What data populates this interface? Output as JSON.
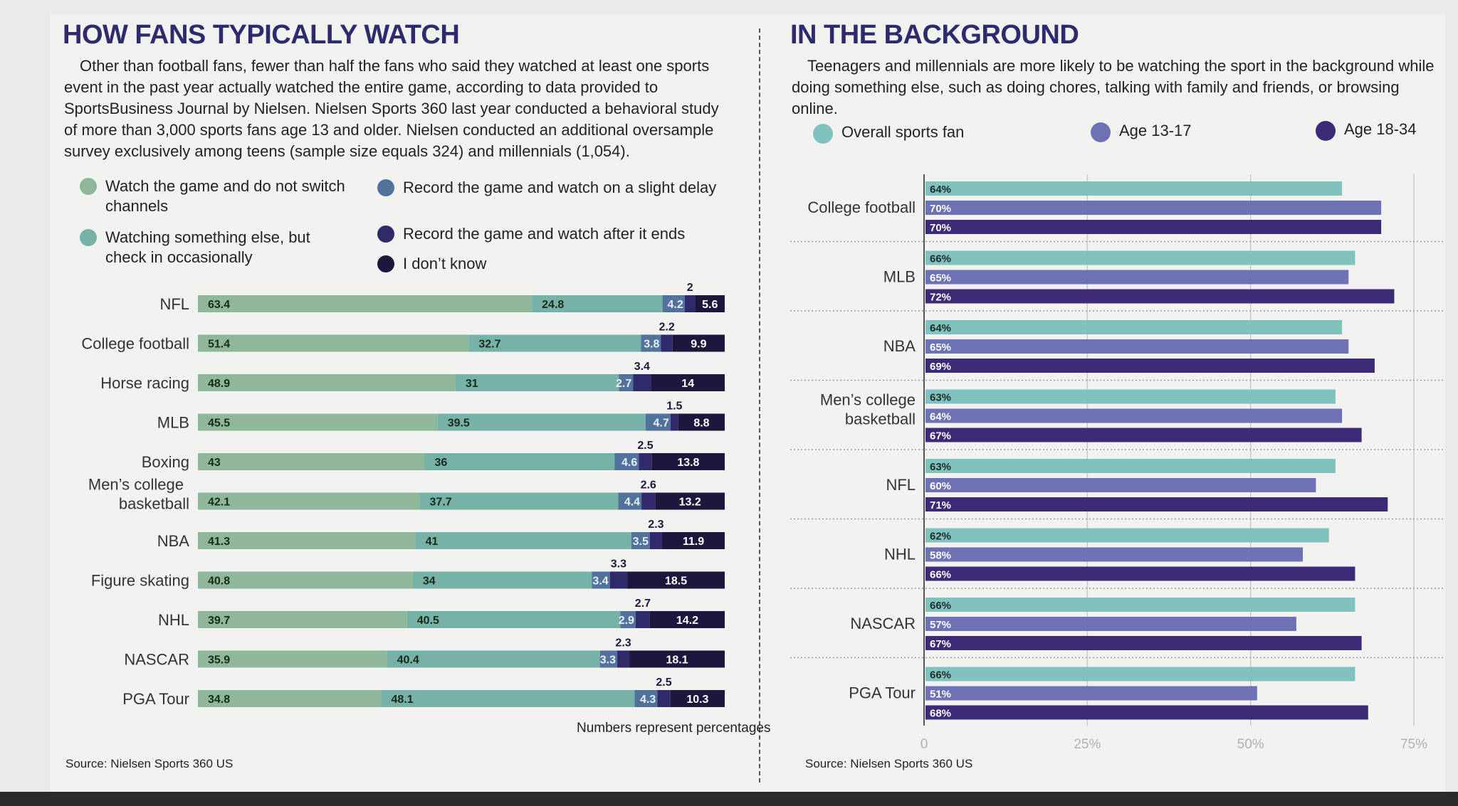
{
  "colors": {
    "watch_no_switch": "#8fb89a",
    "watching_else": "#76b2a8",
    "record_delay": "#51729a",
    "record_after": "#2f2a6a",
    "dont_know": "#1d173d",
    "overall": "#80c2be",
    "age_13_17": "#6c72b3",
    "age_18_34": "#3d2a76",
    "title": "#2e2a6e"
  },
  "left": {
    "title": "HOW FANS TYPICALLY WATCH",
    "intro": "Other than football fans, fewer than half the fans who said they watched at least one sports event in the past year actually watched the entire game, according to data provided to SportsBusiness Journal by Nielsen. Nielsen Sports 360 last year conducted a behavioral study of more than 3,000 sports fans age 13 and older. Nielsen conducted an additional oversample survey exclusively among teens (sample size equals 324) and millennials (1,054).",
    "legend": [
      {
        "label": "Watch the game and do not switch channels",
        "color_key": "watch_no_switch"
      },
      {
        "label": "Watching something else, but check in occasionally",
        "color_key": "watching_else"
      },
      {
        "label": "Record the game and watch on a slight delay",
        "color_key": "record_delay"
      },
      {
        "label": "Record the game and watch after it ends",
        "color_key": "record_after"
      },
      {
        "label": "I don’t know",
        "color_key": "dont_know"
      }
    ],
    "note": "Numbers represent percentages",
    "source": "Source: Nielsen Sports 360 US"
  },
  "right": {
    "title": "IN THE BACKGROUND",
    "intro": "Teenagers and millennials are more likely to be watching the sport in the background while doing something else, such as doing chores, talking with family and friends, or browsing online.",
    "legend": [
      {
        "label": "Overall sports fan",
        "color_key": "overall"
      },
      {
        "label": "Age 13-17",
        "color_key": "age_13_17"
      },
      {
        "label": "Age 18-34",
        "color_key": "age_18_34"
      }
    ],
    "source": "Source: Nielsen Sports 360 US"
  },
  "chart_data": [
    {
      "type": "bar",
      "orientation": "horizontal",
      "stacked": true,
      "title": "HOW FANS TYPICALLY WATCH",
      "unit": "percent",
      "categories": [
        "NFL",
        "College football",
        "Horse racing",
        "MLB",
        "Boxing",
        "Men’s college basketball",
        "NBA",
        "Figure skating",
        "NHL",
        "NASCAR",
        "PGA Tour"
      ],
      "series": [
        {
          "name": "Watch the game and do not switch channels",
          "values": [
            63.4,
            51.4,
            48.9,
            45.5,
            43,
            42.1,
            41.3,
            40.8,
            39.7,
            35.9,
            34.8
          ]
        },
        {
          "name": "Watching something else, but check in occasionally",
          "values": [
            24.8,
            32.7,
            31,
            39.5,
            36,
            37.7,
            41,
            34,
            40.5,
            40.4,
            48.1
          ]
        },
        {
          "name": "Record the game and watch on a slight delay",
          "values": [
            4.2,
            3.8,
            2.7,
            4.7,
            4.6,
            4.4,
            3.5,
            3.4,
            2.9,
            3.3,
            4.3
          ]
        },
        {
          "name": "Record the game and watch after it ends",
          "values": [
            2,
            2.2,
            3.4,
            1.5,
            2.5,
            2.6,
            2.3,
            3.3,
            2.7,
            2.3,
            2.5
          ]
        },
        {
          "name": "I don’t know",
          "values": [
            5.6,
            9.9,
            14,
            8.8,
            13.8,
            13.2,
            11.9,
            18.5,
            14.2,
            18.1,
            10.3
          ]
        }
      ],
      "labels": [
        [
          "63.4",
          "24.8",
          "4.2",
          "2",
          "5.6"
        ],
        [
          "51.4",
          "32.7",
          "3.8",
          "2.2",
          "9.9"
        ],
        [
          "48.9",
          "31",
          "2.7",
          "3.4",
          "14"
        ],
        [
          "45.5",
          "39.5",
          "4.7",
          "1.5",
          "8.8"
        ],
        [
          "43",
          "36",
          "4.6",
          "2.5",
          "13.8"
        ],
        [
          "42.1",
          "37.7",
          "4.4",
          "2.6",
          "13.2"
        ],
        [
          "41.3",
          "41",
          "3.5",
          "2.3",
          "11.9"
        ],
        [
          "40.8",
          "34",
          "3.4",
          "3.3",
          "18.5"
        ],
        [
          "39.7",
          "40.5",
          "2.9",
          "2.7",
          "14.2"
        ],
        [
          "35.9",
          "40.4",
          "3.3",
          "2.3",
          "18.1"
        ],
        [
          "34.8",
          "48.1",
          "4.3",
          "2.5",
          "10.3"
        ]
      ],
      "xlim": [
        0,
        100
      ]
    },
    {
      "type": "bar",
      "orientation": "horizontal",
      "stacked": false,
      "title": "IN THE BACKGROUND",
      "unit": "percent",
      "categories": [
        "College football",
        "MLB",
        "NBA",
        "Men’s college basketball",
        "NFL",
        "NHL",
        "NASCAR",
        "PGA Tour"
      ],
      "series": [
        {
          "name": "Overall sports fan",
          "values": [
            64,
            66,
            64,
            63,
            63,
            62,
            66,
            66
          ]
        },
        {
          "name": "Age 13-17",
          "values": [
            70,
            65,
            65,
            64,
            60,
            58,
            57,
            51
          ]
        },
        {
          "name": "Age 18-34",
          "values": [
            70,
            72,
            69,
            67,
            71,
            66,
            67,
            68
          ]
        }
      ],
      "xlim": [
        0,
        75
      ],
      "xticks": [
        0,
        25,
        50,
        75
      ],
      "xtick_labels": [
        "0",
        "25%",
        "50%",
        "75%"
      ],
      "grid": true
    }
  ]
}
